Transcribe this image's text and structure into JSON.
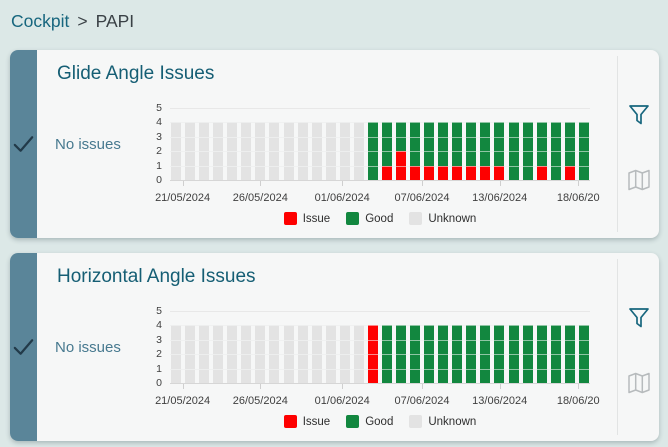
{
  "breadcrumb": {
    "link": "Cockpit",
    "separator": ">",
    "current": "PAPI"
  },
  "colors": {
    "issue": "#fe0000",
    "good": "#12873f",
    "unknown": "#e3e3e3",
    "accent": "#17667e",
    "strip": "#5a8599",
    "check": "#223a49",
    "map_icon": "#b7bbbd"
  },
  "cards": [
    {
      "title": "Glide Angle Issues",
      "status": "No issues",
      "icons": [
        "filter-icon",
        "map-icon"
      ],
      "chart_data": {
        "type": "bar",
        "stacked": true,
        "ylim": [
          0,
          5
        ],
        "yticks": [
          0,
          1,
          2,
          3,
          4,
          5
        ],
        "series_keys": [
          "issue",
          "good",
          "unknown"
        ],
        "bars": [
          [
            0,
            0,
            4
          ],
          [
            0,
            0,
            4
          ],
          [
            0,
            0,
            4
          ],
          [
            0,
            0,
            4
          ],
          [
            0,
            0,
            4
          ],
          [
            0,
            0,
            4
          ],
          [
            0,
            0,
            4
          ],
          [
            0,
            0,
            4
          ],
          [
            0,
            0,
            4
          ],
          [
            0,
            0,
            4
          ],
          [
            0,
            0,
            4
          ],
          [
            0,
            0,
            4
          ],
          [
            0,
            0,
            4
          ],
          [
            0,
            0,
            4
          ],
          [
            0,
            4,
            0
          ],
          [
            1,
            3,
            0
          ],
          [
            2,
            2,
            0
          ],
          [
            1,
            3,
            0
          ],
          [
            1,
            3,
            0
          ],
          [
            1,
            3,
            0
          ],
          [
            1,
            3,
            0
          ],
          [
            1,
            3,
            0
          ],
          [
            1,
            3,
            0
          ],
          [
            1,
            3,
            0
          ],
          [
            0,
            4,
            0
          ],
          [
            0,
            4,
            0
          ],
          [
            1,
            3,
            0
          ],
          [
            0,
            4,
            0
          ],
          [
            1,
            3,
            0
          ],
          [
            0,
            4,
            0
          ]
        ],
        "xticks": [
          {
            "label": "21/05/2024",
            "pos": 0.03
          },
          {
            "label": "26/05/2024",
            "pos": 0.215
          },
          {
            "label": "01/06/2024",
            "pos": 0.41
          },
          {
            "label": "07/06/2024",
            "pos": 0.6
          },
          {
            "label": "13/06/2024",
            "pos": 0.785
          },
          {
            "label": "18/06/20",
            "pos": 0.972
          }
        ],
        "legend": [
          {
            "label": "Issue",
            "key": "issue"
          },
          {
            "label": "Good",
            "key": "good"
          },
          {
            "label": "Unknown",
            "key": "unknown"
          }
        ]
      }
    },
    {
      "title": "Horizontal Angle Issues",
      "status": "No issues",
      "icons": [
        "filter-icon",
        "map-icon"
      ],
      "chart_data": {
        "type": "bar",
        "stacked": true,
        "ylim": [
          0,
          5
        ],
        "yticks": [
          0,
          1,
          2,
          3,
          4,
          5
        ],
        "series_keys": [
          "issue",
          "good",
          "unknown"
        ],
        "bars": [
          [
            0,
            0,
            4
          ],
          [
            0,
            0,
            4
          ],
          [
            0,
            0,
            4
          ],
          [
            0,
            0,
            4
          ],
          [
            0,
            0,
            4
          ],
          [
            0,
            0,
            4
          ],
          [
            0,
            0,
            4
          ],
          [
            0,
            0,
            4
          ],
          [
            0,
            0,
            4
          ],
          [
            0,
            0,
            4
          ],
          [
            0,
            0,
            4
          ],
          [
            0,
            0,
            4
          ],
          [
            0,
            0,
            4
          ],
          [
            0,
            0,
            4
          ],
          [
            4,
            0,
            0
          ],
          [
            0,
            4,
            0
          ],
          [
            0,
            4,
            0
          ],
          [
            0,
            4,
            0
          ],
          [
            0,
            4,
            0
          ],
          [
            0,
            4,
            0
          ],
          [
            0,
            4,
            0
          ],
          [
            0,
            4,
            0
          ],
          [
            0,
            4,
            0
          ],
          [
            0,
            4,
            0
          ],
          [
            0,
            4,
            0
          ],
          [
            0,
            4,
            0
          ],
          [
            0,
            4,
            0
          ],
          [
            0,
            4,
            0
          ],
          [
            0,
            4,
            0
          ],
          [
            0,
            4,
            0
          ]
        ],
        "xticks": [
          {
            "label": "21/05/2024",
            "pos": 0.03
          },
          {
            "label": "26/05/2024",
            "pos": 0.215
          },
          {
            "label": "01/06/2024",
            "pos": 0.41
          },
          {
            "label": "07/06/2024",
            "pos": 0.6
          },
          {
            "label": "13/06/2024",
            "pos": 0.785
          },
          {
            "label": "18/06/20",
            "pos": 0.972
          }
        ],
        "legend": [
          {
            "label": "Issue",
            "key": "issue"
          },
          {
            "label": "Good",
            "key": "good"
          },
          {
            "label": "Unknown",
            "key": "unknown"
          }
        ]
      }
    }
  ]
}
